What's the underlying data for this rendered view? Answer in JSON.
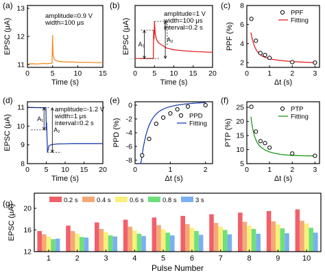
{
  "chart_data": [
    {
      "panel": "(a)",
      "type": "line",
      "xlabel": "Time (s)",
      "ylabel": "EPSC (μA)",
      "xlim": [
        0,
        15
      ],
      "ylim": [
        10.9,
        13.1
      ],
      "xticks": [
        0,
        5,
        10,
        15
      ],
      "yticks": [
        11,
        12,
        13
      ],
      "annotations": [
        "amplitude=0.9 V",
        "width=100 μs"
      ],
      "series": [
        {
          "color": "#f28c1e",
          "x": [
            0,
            1,
            2,
            3,
            4,
            4.9,
            5.0,
            5.1,
            5.3,
            5.6,
            6,
            7,
            8,
            9,
            10,
            11,
            12,
            13,
            14,
            15
          ],
          "y": [
            11.02,
            11.03,
            11.02,
            11.04,
            11.03,
            11.05,
            12.05,
            11.35,
            11.2,
            11.15,
            11.12,
            11.1,
            11.09,
            11.09,
            11.08,
            11.08,
            11.08,
            11.07,
            11.07,
            11.07
          ]
        }
      ]
    },
    {
      "panel": "(b)",
      "type": "line",
      "xlabel": "Time (s)",
      "ylabel": "EPSC (μA)",
      "xlim": [
        0,
        20
      ],
      "ylim": [
        10.5,
        14
      ],
      "xticks": [
        0,
        5,
        10,
        15,
        20
      ],
      "yticks": [],
      "annotations": [
        "amplitude=1 V",
        "width=100 μs",
        "interval=0.2 s",
        "A₁",
        "A₂"
      ],
      "series": [
        {
          "color": "#e02020",
          "x": [
            0,
            1,
            2,
            3,
            4,
            4.7,
            4.8,
            4.9,
            5.0,
            5.2,
            5.5,
            6,
            7,
            8,
            10,
            12,
            15,
            18,
            20
          ],
          "y": [
            11.0,
            11.0,
            11.0,
            11.0,
            11.0,
            11.0,
            12.6,
            12.1,
            13.1,
            12.4,
            12.1,
            11.9,
            11.75,
            11.6,
            11.5,
            11.45,
            11.4,
            11.37,
            11.35
          ]
        }
      ]
    },
    {
      "panel": "(c)",
      "type": "scatter",
      "xlabel": "Δt (s)",
      "ylabel": "PPF (%)",
      "xlim": [
        0,
        3.2
      ],
      "ylim": [
        1.5,
        8
      ],
      "xticks": [
        0,
        1,
        2,
        3
      ],
      "yticks": [
        2,
        4,
        6,
        8
      ],
      "series": [
        {
          "name": "PPF",
          "color": "#000000",
          "x": [
            0.2,
            0.4,
            0.6,
            0.8,
            1,
            2,
            3
          ],
          "y": [
            6.6,
            4.3,
            3.0,
            2.8,
            2.5,
            2.05,
            2.0
          ]
        },
        {
          "name": "Fitting",
          "color": "#e02020",
          "fit": {
            "a1": 6,
            "t1": 0.18,
            "a2": 1.2,
            "t2": 1.0,
            "c": 1.95
          }
        }
      ]
    },
    {
      "panel": "(d)",
      "type": "line",
      "xlabel": "Time (s)",
      "ylabel": "EPSC (μA)",
      "xlim": [
        0,
        20
      ],
      "ylim": [
        8,
        11.3
      ],
      "xticks": [
        0,
        5,
        10,
        15,
        20
      ],
      "yticks": [
        8,
        9,
        10,
        11
      ],
      "annotations": [
        "amplitude=-1.2 V",
        "width=1 μs",
        "interval=0.2 s",
        "A₁",
        "A₂"
      ],
      "series": [
        {
          "color": "#1f3fb0",
          "x": [
            0,
            1,
            2,
            3,
            4,
            4.9,
            5.0,
            5.1,
            5.3,
            5.5,
            5.7,
            6.2,
            7,
            8,
            10,
            12,
            15,
            18,
            20
          ],
          "y": [
            11.0,
            11.0,
            10.99,
            10.99,
            10.98,
            10.98,
            9.8,
            10.2,
            8.6,
            8.75,
            8.95,
            9.0,
            9.03,
            9.05,
            9.06,
            9.07,
            9.07,
            9.07,
            9.07
          ]
        }
      ]
    },
    {
      "panel": "(e)",
      "type": "scatter",
      "xlabel": "Δt (s)",
      "ylabel": "PPD (%)",
      "xlim": [
        0,
        2.2
      ],
      "ylim": [
        -8.5,
        0.5
      ],
      "xticks": [
        0,
        1,
        2
      ],
      "yticks": [
        0,
        -2,
        -4,
        -6,
        -8
      ],
      "series": [
        {
          "name": "PPD",
          "color": "#000000",
          "x": [
            0.2,
            0.4,
            0.6,
            0.8,
            1,
            1.2,
            1.5,
            2
          ],
          "y": [
            -7.3,
            -4.9,
            -2.7,
            -1.8,
            -1.2,
            -0.6,
            -0.2,
            0.0
          ]
        },
        {
          "name": "Fitting",
          "color": "#1f3fb0",
          "fit": {
            "a1": -17,
            "t1": 0.17,
            "a2": -3.5,
            "t2": 0.6,
            "c": 0.5
          }
        }
      ]
    },
    {
      "panel": "(f)",
      "type": "scatter",
      "xlabel": "Δt (s)",
      "ylabel": "PTP (%)",
      "xlim": [
        0,
        3.2
      ],
      "ylim": [
        5,
        27
      ],
      "xticks": [
        0,
        1,
        2,
        3
      ],
      "yticks": [
        5,
        10,
        15,
        20,
        25
      ],
      "series": [
        {
          "name": "PTP",
          "color": "#000000",
          "x": [
            0.2,
            0.4,
            0.6,
            0.8,
            1,
            2,
            3
          ],
          "y": [
            25.2,
            16.4,
            13.0,
            12.3,
            10.7,
            8.6,
            7.8
          ]
        },
        {
          "name": "Fitting",
          "color": "#1a9a1a",
          "fit": {
            "a1": 30,
            "t1": 0.13,
            "a2": 9,
            "t2": 0.55,
            "c": 7.7
          }
        }
      ]
    },
    {
      "panel": "(g)",
      "type": "bar",
      "xlabel": "Pulse Number",
      "ylabel": "EPSC (μA)",
      "ylim": [
        12,
        20
      ],
      "yticks": [
        12,
        16,
        20
      ],
      "categories": [
        "1",
        "2",
        "3",
        "4",
        "5",
        "6",
        "7",
        "8",
        "9",
        "10"
      ],
      "legend_position": "top",
      "series": [
        {
          "name": "0.2 s",
          "color": "#f0606a",
          "values": [
            15.8,
            16.8,
            17.4,
            17.9,
            18.3,
            18.6,
            18.9,
            19.2,
            19.5,
            19.8
          ]
        },
        {
          "name": "0.4 s",
          "color": "#f5a878",
          "values": [
            15.2,
            15.8,
            16.2,
            16.6,
            16.9,
            17.1,
            17.3,
            17.5,
            17.6,
            17.7
          ]
        },
        {
          "name": "0.6 s",
          "color": "#f7f07a",
          "values": [
            14.8,
            15.3,
            15.6,
            15.9,
            16.1,
            16.4,
            16.6,
            16.8,
            17.0,
            17.2
          ]
        },
        {
          "name": "0.8 s",
          "color": "#6ee07a",
          "values": [
            14.3,
            14.7,
            15.0,
            15.3,
            15.5,
            15.8,
            16.0,
            16.2,
            16.3,
            16.4
          ]
        },
        {
          "name": "3 s",
          "color": "#7ab0f0",
          "values": [
            14.4,
            14.6,
            14.8,
            14.9,
            15.0,
            15.1,
            15.2,
            15.3,
            15.4,
            15.5
          ]
        }
      ]
    }
  ]
}
